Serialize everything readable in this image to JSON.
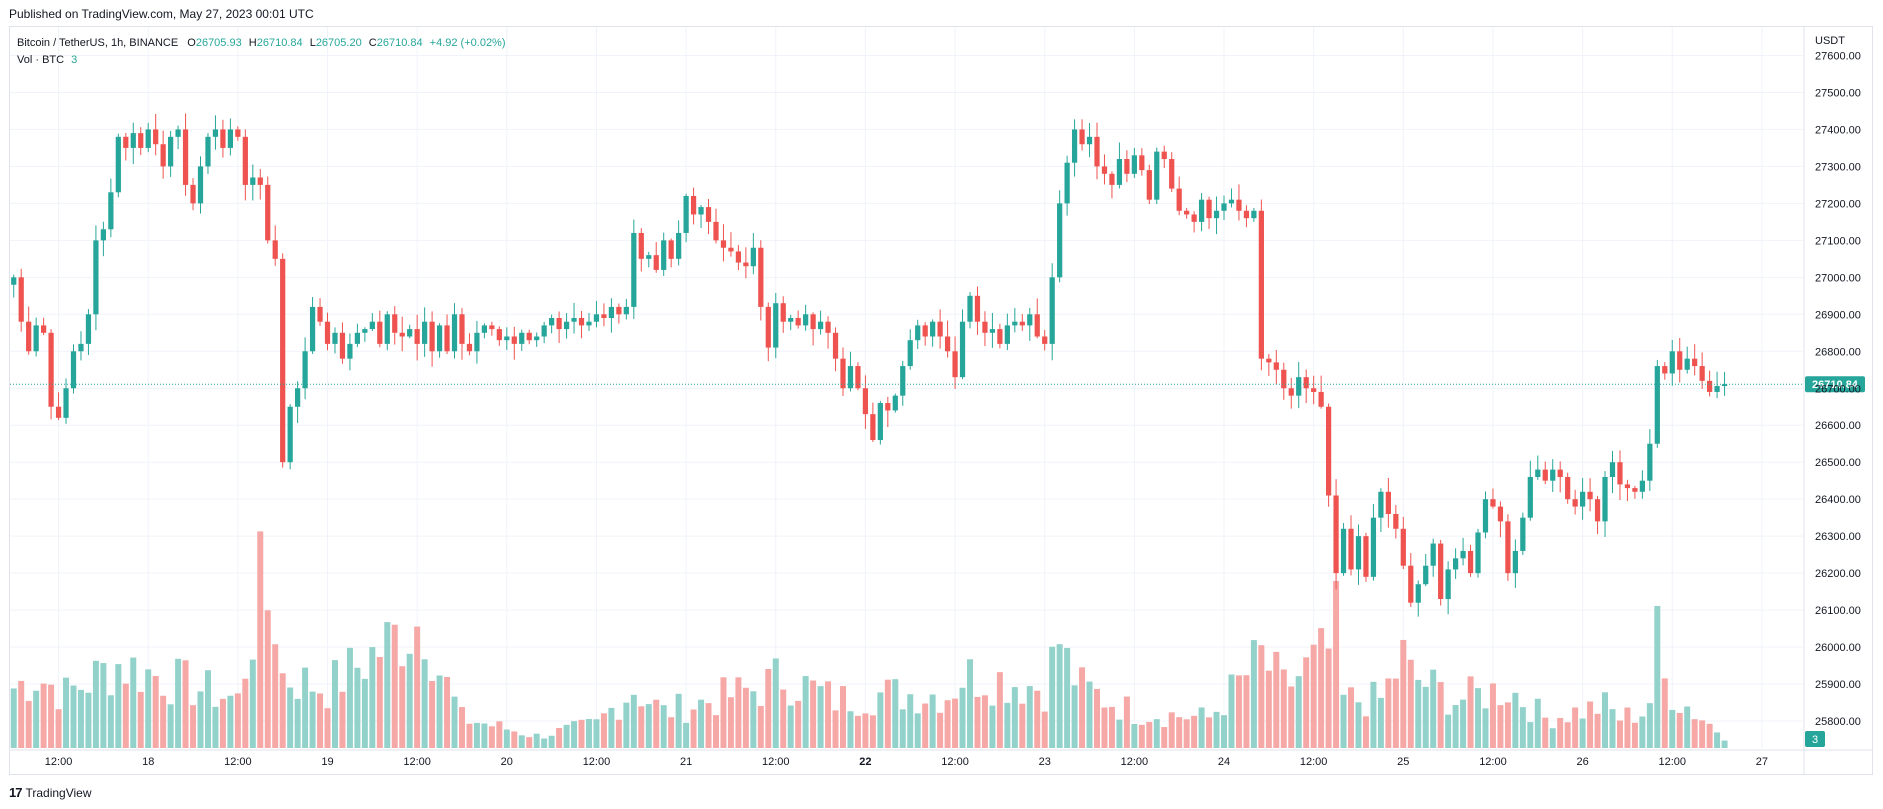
{
  "header": {
    "published": "Published on TradingView.com, May 27, 2023 00:01 UTC"
  },
  "legend": {
    "symbol": "Bitcoin / TetherUS, 1h, BINANCE",
    "o_label": "O",
    "o_value": "26705.93",
    "h_label": "H",
    "h_value": "26710.84",
    "l_label": "L",
    "l_value": "26705.20",
    "c_label": "C",
    "c_value": "26710.84",
    "change": "+4.92 (+0.02%)",
    "vol_label": "Vol · BTC",
    "vol_value": "3"
  },
  "footer": {
    "brand": "TradingView"
  },
  "colors": {
    "up": "#26a69a",
    "down": "#ef5350",
    "vol_up": "#93d1cb",
    "vol_down": "#f5a8a6",
    "grid": "#f0f3fa",
    "text": "#131722",
    "last_price_line": "#26a69a"
  },
  "chart_data": {
    "type": "candlestick",
    "title": "Bitcoin / TetherUS, 1h, BINANCE",
    "currency": "USDT",
    "ylim": [
      25700,
      27650
    ],
    "y_ticks": [
      25800,
      25900,
      26000,
      26100,
      26200,
      26300,
      26400,
      26500,
      26600,
      26700,
      26800,
      26900,
      27000,
      27100,
      27200,
      27300,
      27400,
      27500,
      27600
    ],
    "x_ticks": [
      {
        "label": "12:00",
        "bar": 6,
        "bold": false
      },
      {
        "label": "18",
        "bar": 18,
        "bold": false
      },
      {
        "label": "12:00",
        "bar": 30,
        "bold": false
      },
      {
        "label": "19",
        "bar": 42,
        "bold": false
      },
      {
        "label": "12:00",
        "bar": 54,
        "bold": false
      },
      {
        "label": "20",
        "bar": 66,
        "bold": false
      },
      {
        "label": "12:00",
        "bar": 78,
        "bold": false
      },
      {
        "label": "21",
        "bar": 90,
        "bold": false
      },
      {
        "label": "12:00",
        "bar": 102,
        "bold": false
      },
      {
        "label": "22",
        "bar": 114,
        "bold": true
      },
      {
        "label": "12:00",
        "bar": 126,
        "bold": false
      },
      {
        "label": "23",
        "bar": 138,
        "bold": false
      },
      {
        "label": "12:00",
        "bar": 150,
        "bold": false
      },
      {
        "label": "24",
        "bar": 162,
        "bold": false
      },
      {
        "label": "12:00",
        "bar": 174,
        "bold": false
      },
      {
        "label": "25",
        "bar": 186,
        "bold": false
      },
      {
        "label": "12:00",
        "bar": 198,
        "bold": false
      },
      {
        "label": "26",
        "bar": 210,
        "bold": false
      },
      {
        "label": "12:00",
        "bar": 222,
        "bold": false
      },
      {
        "label": "27",
        "bar": 234,
        "bold": false
      }
    ],
    "last_price": 26710.84,
    "last_price_label": "26710.84",
    "volume_badge": "3",
    "waypoints": [
      [
        0,
        27000
      ],
      [
        1,
        26880
      ],
      [
        2,
        26800
      ],
      [
        3,
        26870
      ],
      [
        4,
        26850
      ],
      [
        5,
        26650
      ],
      [
        6,
        26620
      ],
      [
        7,
        26700
      ],
      [
        8,
        26800
      ],
      [
        9,
        26820
      ],
      [
        10,
        26900
      ],
      [
        11,
        27100
      ],
      [
        12,
        27130
      ],
      [
        13,
        27230
      ],
      [
        14,
        27380
      ],
      [
        15,
        27350
      ],
      [
        16,
        27390
      ],
      [
        17,
        27350
      ],
      [
        18,
        27400
      ],
      [
        19,
        27360
      ],
      [
        20,
        27300
      ],
      [
        21,
        27380
      ],
      [
        22,
        27400
      ],
      [
        23,
        27250
      ],
      [
        24,
        27200
      ],
      [
        25,
        27300
      ],
      [
        26,
        27380
      ],
      [
        27,
        27400
      ],
      [
        28,
        27350
      ],
      [
        29,
        27400
      ],
      [
        30,
        27380
      ],
      [
        31,
        27250
      ],
      [
        32,
        27270
      ],
      [
        33,
        27250
      ],
      [
        34,
        27100
      ],
      [
        35,
        27050
      ],
      [
        36,
        26500
      ],
      [
        37,
        26650
      ],
      [
        38,
        26700
      ],
      [
        39,
        26800
      ],
      [
        40,
        26920
      ],
      [
        41,
        26880
      ],
      [
        42,
        26820
      ],
      [
        43,
        26850
      ],
      [
        44,
        26780
      ],
      [
        45,
        26820
      ],
      [
        46,
        26850
      ],
      [
        47,
        26860
      ],
      [
        48,
        26880
      ],
      [
        49,
        26820
      ],
      [
        50,
        26900
      ],
      [
        51,
        26850
      ],
      [
        52,
        26840
      ],
      [
        53,
        26860
      ],
      [
        54,
        26820
      ],
      [
        55,
        26880
      ],
      [
        56,
        26800
      ],
      [
        57,
        26870
      ],
      [
        58,
        26800
      ],
      [
        59,
        26900
      ],
      [
        60,
        26820
      ],
      [
        61,
        26800
      ],
      [
        62,
        26850
      ],
      [
        63,
        26870
      ],
      [
        64,
        26860
      ],
      [
        65,
        26830
      ],
      [
        66,
        26840
      ],
      [
        67,
        26820
      ],
      [
        68,
        26850
      ],
      [
        69,
        26830
      ],
      [
        70,
        26840
      ],
      [
        71,
        26870
      ],
      [
        72,
        26890
      ],
      [
        73,
        26860
      ],
      [
        74,
        26880
      ],
      [
        75,
        26890
      ],
      [
        76,
        26870
      ],
      [
        77,
        26880
      ],
      [
        78,
        26900
      ],
      [
        79,
        26890
      ],
      [
        80,
        26920
      ],
      [
        81,
        26900
      ],
      [
        82,
        26920
      ],
      [
        83,
        27120
      ],
      [
        84,
        27050
      ],
      [
        85,
        27060
      ],
      [
        86,
        27020
      ],
      [
        87,
        27100
      ],
      [
        88,
        27050
      ],
      [
        89,
        27120
      ],
      [
        90,
        27220
      ],
      [
        91,
        27170
      ],
      [
        92,
        27190
      ],
      [
        93,
        27150
      ],
      [
        94,
        27100
      ],
      [
        95,
        27080
      ],
      [
        96,
        27070
      ],
      [
        97,
        27040
      ],
      [
        98,
        27030
      ],
      [
        99,
        27080
      ],
      [
        100,
        26920
      ],
      [
        101,
        26810
      ],
      [
        102,
        26930
      ],
      [
        103,
        26880
      ],
      [
        104,
        26890
      ],
      [
        105,
        26870
      ],
      [
        106,
        26900
      ],
      [
        107,
        26860
      ],
      [
        108,
        26880
      ],
      [
        109,
        26850
      ],
      [
        110,
        26780
      ],
      [
        111,
        26700
      ],
      [
        112,
        26760
      ],
      [
        113,
        26700
      ],
      [
        114,
        26630
      ],
      [
        115,
        26560
      ],
      [
        116,
        26660
      ],
      [
        117,
        26640
      ],
      [
        118,
        26680
      ],
      [
        119,
        26760
      ],
      [
        120,
        26830
      ],
      [
        121,
        26870
      ],
      [
        122,
        26840
      ],
      [
        123,
        26880
      ],
      [
        124,
        26840
      ],
      [
        125,
        26800
      ],
      [
        126,
        26730
      ],
      [
        127,
        26880
      ],
      [
        128,
        26950
      ],
      [
        129,
        26880
      ],
      [
        130,
        26850
      ],
      [
        131,
        26860
      ],
      [
        132,
        26820
      ],
      [
        133,
        26870
      ],
      [
        134,
        26880
      ],
      [
        135,
        26870
      ],
      [
        136,
        26900
      ],
      [
        137,
        26840
      ],
      [
        138,
        26820
      ],
      [
        139,
        27000
      ],
      [
        140,
        27200
      ],
      [
        141,
        27310
      ],
      [
        142,
        27400
      ],
      [
        143,
        27360
      ],
      [
        144,
        27380
      ],
      [
        145,
        27300
      ],
      [
        146,
        27280
      ],
      [
        147,
        27250
      ],
      [
        148,
        27320
      ],
      [
        149,
        27280
      ],
      [
        150,
        27330
      ],
      [
        151,
        27290
      ],
      [
        152,
        27210
      ],
      [
        153,
        27340
      ],
      [
        154,
        27320
      ],
      [
        155,
        27240
      ],
      [
        156,
        27180
      ],
      [
        157,
        27170
      ],
      [
        158,
        27150
      ],
      [
        159,
        27210
      ],
      [
        160,
        27160
      ],
      [
        161,
        27180
      ],
      [
        162,
        27200
      ],
      [
        163,
        27210
      ],
      [
        164,
        27180
      ],
      [
        165,
        27160
      ],
      [
        166,
        27180
      ],
      [
        167,
        26780
      ],
      [
        168,
        26770
      ],
      [
        169,
        26750
      ],
      [
        170,
        26700
      ],
      [
        171,
        26680
      ],
      [
        172,
        26730
      ],
      [
        173,
        26700
      ],
      [
        174,
        26690
      ],
      [
        175,
        26650
      ],
      [
        176,
        26410
      ],
      [
        177,
        26200
      ],
      [
        178,
        26320
      ],
      [
        179,
        26210
      ],
      [
        180,
        26300
      ],
      [
        181,
        26190
      ],
      [
        182,
        26350
      ],
      [
        183,
        26420
      ],
      [
        184,
        26360
      ],
      [
        185,
        26320
      ],
      [
        186,
        26220
      ],
      [
        187,
        26120
      ],
      [
        188,
        26170
      ],
      [
        189,
        26220
      ],
      [
        190,
        26280
      ],
      [
        191,
        26130
      ],
      [
        192,
        26210
      ],
      [
        193,
        26240
      ],
      [
        194,
        26260
      ],
      [
        195,
        26200
      ],
      [
        196,
        26310
      ],
      [
        197,
        26400
      ],
      [
        198,
        26380
      ],
      [
        199,
        26340
      ],
      [
        200,
        26200
      ],
      [
        201,
        26260
      ],
      [
        202,
        26350
      ],
      [
        203,
        26460
      ],
      [
        204,
        26480
      ],
      [
        205,
        26450
      ],
      [
        206,
        26480
      ],
      [
        207,
        26460
      ],
      [
        208,
        26400
      ],
      [
        209,
        26380
      ],
      [
        210,
        26420
      ],
      [
        211,
        26400
      ],
      [
        212,
        26340
      ],
      [
        213,
        26460
      ],
      [
        214,
        26500
      ],
      [
        215,
        26440
      ],
      [
        216,
        26430
      ],
      [
        217,
        26420
      ],
      [
        218,
        26450
      ],
      [
        219,
        26550
      ],
      [
        220,
        26760
      ],
      [
        221,
        26740
      ],
      [
        222,
        26800
      ],
      [
        223,
        26750
      ],
      [
        224,
        26780
      ],
      [
        225,
        26760
      ],
      [
        226,
        26720
      ],
      [
        227,
        26690
      ],
      [
        228,
        26706
      ],
      [
        229,
        26711
      ]
    ],
    "volume_peaks": [
      [
        0,
        10
      ],
      [
        3,
        12
      ],
      [
        7,
        9
      ],
      [
        14,
        14
      ],
      [
        30,
        8
      ],
      [
        33,
        26
      ],
      [
        35,
        22
      ],
      [
        36,
        12
      ],
      [
        42,
        10
      ],
      [
        55,
        22
      ],
      [
        57,
        13
      ],
      [
        60,
        5
      ],
      [
        70,
        2
      ],
      [
        78,
        4
      ],
      [
        83,
        10
      ],
      [
        87,
        6
      ],
      [
        100,
        10
      ],
      [
        103,
        12
      ],
      [
        110,
        8
      ],
      [
        116,
        9
      ],
      [
        125,
        9
      ],
      [
        127,
        12
      ],
      [
        130,
        12
      ],
      [
        138,
        10
      ],
      [
        140,
        18
      ],
      [
        141,
        14
      ],
      [
        143,
        10
      ],
      [
        150,
        6
      ],
      [
        160,
        5
      ],
      [
        167,
        15
      ],
      [
        170,
        10
      ],
      [
        172,
        12
      ],
      [
        175,
        15
      ],
      [
        176,
        16
      ],
      [
        177,
        20
      ],
      [
        178,
        8
      ],
      [
        183,
        8
      ],
      [
        186,
        15
      ],
      [
        187,
        12
      ],
      [
        193,
        8
      ],
      [
        200,
        10
      ],
      [
        202,
        8
      ],
      [
        205,
        5
      ],
      [
        213,
        7
      ],
      [
        215,
        5
      ],
      [
        218,
        6
      ],
      [
        219,
        8
      ],
      [
        220,
        18
      ],
      [
        221,
        11
      ],
      [
        223,
        8
      ],
      [
        226,
        5
      ],
      [
        229,
        2
      ]
    ]
  }
}
